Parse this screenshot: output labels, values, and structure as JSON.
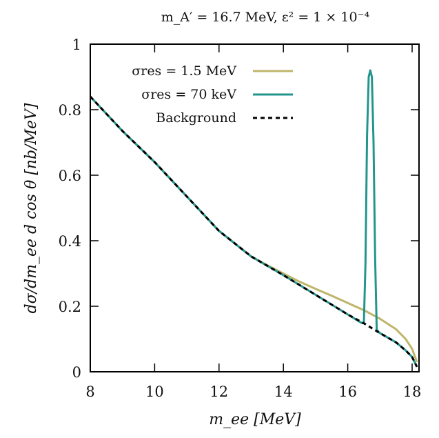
{
  "chart_data": {
    "type": "line",
    "title": "m_A′ = 16.7 MeV, ε² = 1 × 10⁻⁴",
    "xlabel": "m_ee [MeV]",
    "ylabel": "dσ/dm_ee d cos θ [nb/MeV]",
    "xlim": [
      8,
      18.2
    ],
    "ylim": [
      0,
      1
    ],
    "xticks": [
      8,
      10,
      12,
      14,
      16,
      18
    ],
    "xtick_labels": [
      "8",
      "10",
      "12",
      "14",
      "16",
      "18"
    ],
    "yticks": [
      0,
      0.2,
      0.4,
      0.6,
      0.8,
      1
    ],
    "ytick_labels": [
      "0",
      "0.2",
      "0.4",
      "0.6",
      "0.8",
      "1"
    ],
    "grid": false,
    "legend_position": "top-left",
    "series": [
      {
        "name": "σres = 1.5 MeV",
        "color": "#bfb56a",
        "style": "solid",
        "x": [
          8,
          9,
          10,
          11,
          12,
          13,
          13.5,
          14,
          14.5,
          15,
          15.5,
          16,
          16.5,
          17,
          17.5,
          17.8,
          18,
          18.15
        ],
        "y": [
          0.84,
          0.735,
          0.64,
          0.535,
          0.43,
          0.352,
          0.325,
          0.3,
          0.275,
          0.253,
          0.232,
          0.21,
          0.188,
          0.162,
          0.13,
          0.1,
          0.07,
          0.03
        ]
      },
      {
        "name": "σres = 70 keV",
        "color": "#23958d",
        "style": "solid",
        "x": [
          8,
          9,
          10,
          11,
          12,
          13,
          14,
          15,
          16,
          16.45,
          16.5,
          16.55,
          16.6,
          16.65,
          16.7,
          16.75,
          16.8,
          16.85,
          16.9,
          16.95,
          17,
          17.5,
          17.8,
          18,
          18.15
        ],
        "y": [
          0.84,
          0.735,
          0.64,
          0.535,
          0.43,
          0.352,
          0.295,
          0.235,
          0.175,
          0.148,
          0.15,
          0.33,
          0.72,
          0.9,
          0.92,
          0.9,
          0.7,
          0.35,
          0.13,
          0.122,
          0.118,
          0.09,
          0.065,
          0.045,
          0.015
        ]
      },
      {
        "name": "Background",
        "color": "#000000",
        "style": "dashed",
        "x": [
          8,
          9,
          10,
          11,
          12,
          13,
          14,
          15,
          16,
          16.5,
          17,
          17.5,
          17.8,
          18,
          18.15
        ],
        "y": [
          0.84,
          0.735,
          0.64,
          0.535,
          0.43,
          0.352,
          0.295,
          0.235,
          0.175,
          0.148,
          0.118,
          0.09,
          0.065,
          0.045,
          0.015
        ]
      }
    ]
  }
}
